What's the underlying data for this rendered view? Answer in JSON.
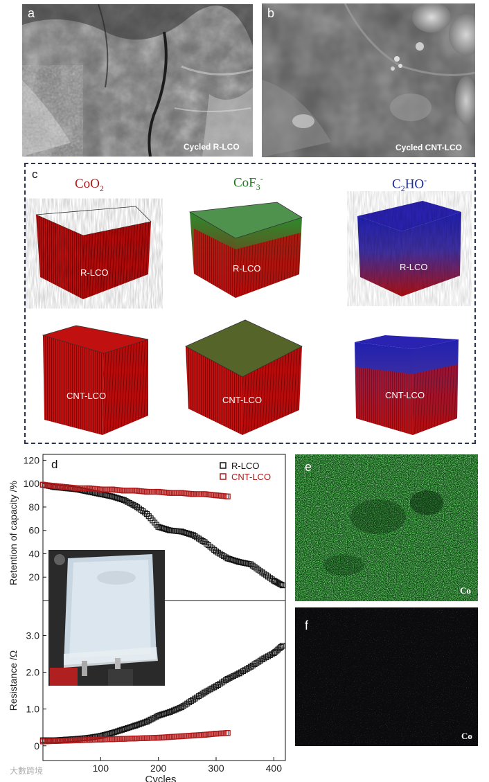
{
  "panels": {
    "a": {
      "letter": "a",
      "caption": "Cycled R-LCO"
    },
    "b": {
      "letter": "b",
      "caption": "Cycled CNT-LCO"
    },
    "c": {
      "letter": "c",
      "species": [
        {
          "base": "CoO",
          "sub": "2",
          "sup": "",
          "color": "#b01818"
        },
        {
          "base": "CoF",
          "sub": "3",
          "sup": "-",
          "color": "#1e7a1e"
        },
        {
          "base": "C",
          "sub": "2",
          "mid": "HO",
          "sup": "-",
          "color": "#1a2aa0"
        }
      ],
      "row_labels": [
        "R-LCO",
        "CNT-LCO"
      ]
    },
    "e": {
      "letter": "e",
      "element": "Co",
      "color": "#2e8b2e"
    },
    "f": {
      "letter": "f",
      "element": "Co"
    }
  },
  "watermark": "大數跨境",
  "chart_data": {
    "type": "scatter",
    "panel_letter": "d",
    "xlabel": "Cycles",
    "xlim": [
      0,
      420
    ],
    "xticks": [
      100,
      200,
      300,
      400
    ],
    "top": {
      "ylabel": "Retention of capacity /%",
      "ylim": [
        0,
        125
      ],
      "yticks": [
        20,
        40,
        60,
        80,
        100,
        120
      ],
      "series": [
        {
          "name": "R-LCO",
          "color": "#111111",
          "x": [
            0,
            20,
            40,
            60,
            80,
            100,
            120,
            140,
            160,
            180,
            200,
            220,
            240,
            260,
            280,
            300,
            320,
            340,
            360,
            380,
            400,
            415
          ],
          "y": [
            99,
            97,
            96,
            95,
            93,
            91,
            89,
            86,
            81,
            74,
            63,
            60,
            59,
            56,
            50,
            42,
            36,
            33,
            31,
            24,
            17,
            13
          ]
        },
        {
          "name": "CNT-LCO",
          "color": "#b01818",
          "x": [
            0,
            20,
            40,
            60,
            80,
            100,
            120,
            140,
            160,
            180,
            200,
            220,
            240,
            260,
            280,
            300,
            320
          ],
          "y": [
            99,
            98,
            97,
            96,
            96,
            95,
            95,
            94,
            94,
            93,
            93,
            92,
            92,
            91,
            91,
            90,
            89
          ]
        }
      ],
      "legend_position": "top-right"
    },
    "bottom": {
      "ylabel": "Resistance /Ω",
      "ylim": [
        -0.4,
        3.95
      ],
      "yticks": [
        0.0,
        1.0,
        2.0,
        3.0
      ],
      "ytick_labels": [
        "0",
        "1.0",
        "2.0",
        "3.0"
      ],
      "series": [
        {
          "name": "R-LCO",
          "color": "#111111",
          "x": [
            0,
            20,
            40,
            60,
            80,
            100,
            120,
            140,
            160,
            180,
            200,
            220,
            240,
            260,
            280,
            300,
            320,
            340,
            360,
            380,
            400,
            415
          ],
          "y": [
            0.15,
            0.15,
            0.17,
            0.19,
            0.22,
            0.27,
            0.35,
            0.45,
            0.55,
            0.66,
            0.82,
            0.92,
            1.05,
            1.25,
            1.45,
            1.62,
            1.82,
            1.97,
            2.15,
            2.35,
            2.52,
            2.72
          ]
        },
        {
          "name": "CNT-LCO",
          "color": "#b01818",
          "x": [
            0,
            20,
            40,
            60,
            80,
            100,
            120,
            140,
            160,
            180,
            200,
            220,
            240,
            260,
            280,
            300,
            320
          ],
          "y": [
            0.12,
            0.13,
            0.14,
            0.15,
            0.16,
            0.17,
            0.18,
            0.19,
            0.2,
            0.21,
            0.22,
            0.24,
            0.26,
            0.28,
            0.3,
            0.33,
            0.35
          ]
        }
      ]
    }
  }
}
